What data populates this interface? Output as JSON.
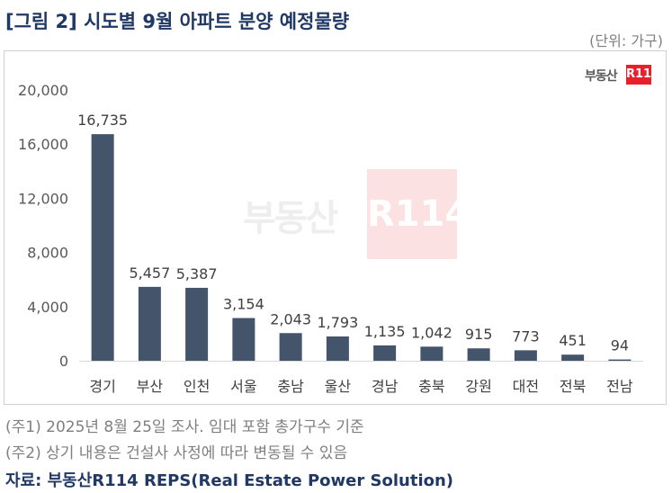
{
  "header": {
    "title": "[그림 2] 시도별 9월 아파트 분양 예정물량",
    "unit": "(단위: 가구)"
  },
  "logo": {
    "text": "부동산",
    "badge": "R114"
  },
  "watermark": {
    "text": "부동산",
    "badge": "R114"
  },
  "notes": [
    "(주1) 2025년 8월 25일 조사. 임대 포함 총가구수 기준",
    "(주2) 상기 내용은 건설사 사정에 따라 변동될 수 있음"
  ],
  "source": "자료: 부동산R114 REPS(Real Estate Power Solution)",
  "colors": {
    "bar": "#44546a",
    "title": "#1f3864",
    "logo_red": "#e8202a"
  },
  "chart_data": {
    "type": "bar",
    "title": "",
    "xlabel": "",
    "ylabel": "",
    "categories": [
      "경기",
      "부산",
      "인천",
      "서울",
      "충남",
      "울산",
      "경남",
      "충북",
      "강원",
      "대전",
      "전북",
      "전남"
    ],
    "values": [
      16735,
      5457,
      5387,
      3154,
      2043,
      1793,
      1135,
      1042,
      915,
      773,
      451,
      94
    ],
    "value_labels": [
      "16,735",
      "5,457",
      "5,387",
      "3,154",
      "2,043",
      "1,793",
      "1,135",
      "1,042",
      "915",
      "773",
      "451",
      "94"
    ],
    "ylim": [
      0,
      20000
    ],
    "yticks": [
      0,
      4000,
      8000,
      12000,
      16000,
      20000
    ],
    "ytick_labels": [
      "0",
      "4,000",
      "8,000",
      "12,000",
      "16,000",
      "20,000"
    ],
    "grid": false,
    "legend": "none"
  }
}
